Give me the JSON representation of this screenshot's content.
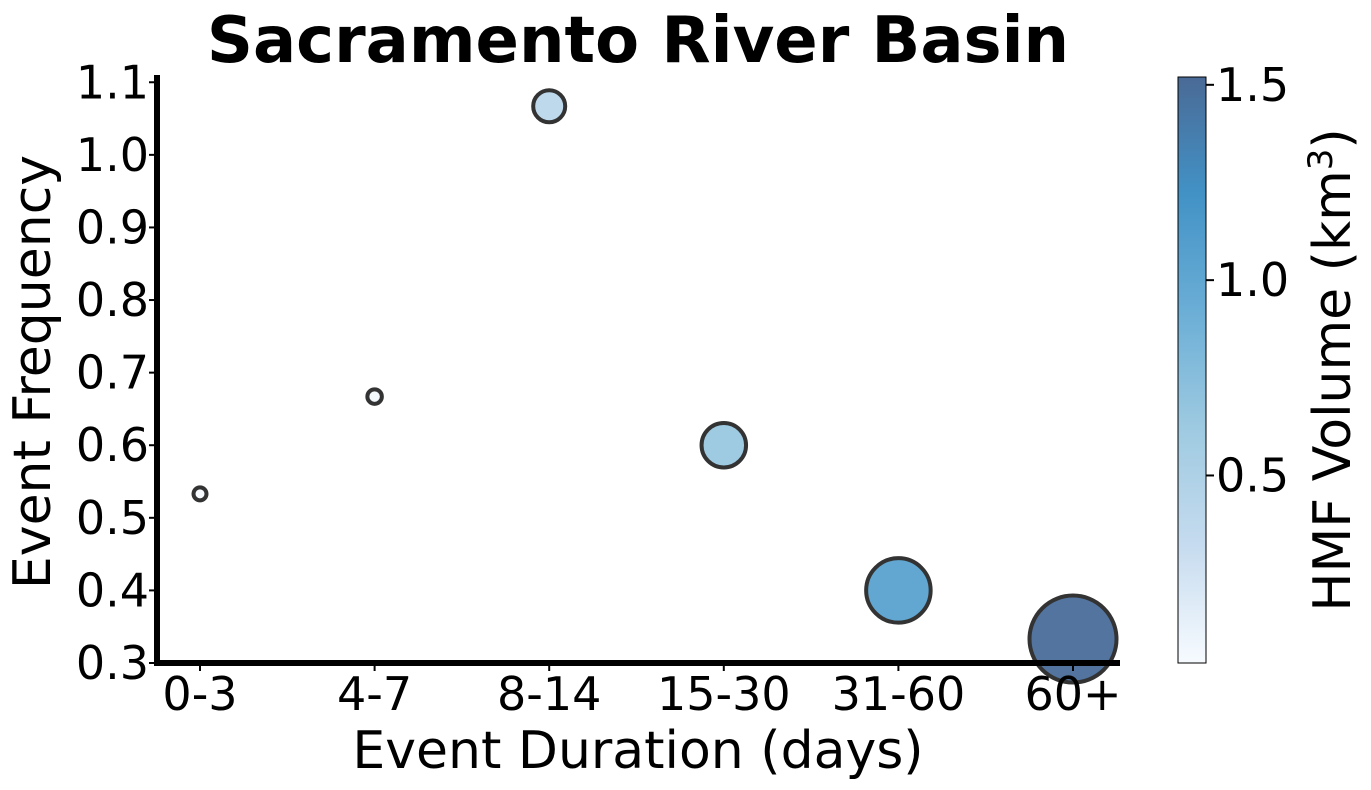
{
  "chart_data": {
    "type": "scatter",
    "title": "Sacramento River Basin",
    "xlabel": "Event Duration (days)",
    "ylabel": "Event Frequency",
    "categories": [
      "0-3",
      "4-7",
      "8-14",
      "15-30",
      "31-60",
      "60+"
    ],
    "y": [
      0.533,
      0.667,
      1.067,
      0.6,
      0.4,
      0.333
    ],
    "hmf_volume_km3": [
      0.02,
      0.05,
      0.4,
      0.65,
      1.05,
      1.5
    ],
    "ylim": [
      0.3,
      1.11
    ],
    "yticks": [
      "0.3",
      "0.4",
      "0.5",
      "0.6",
      "0.7",
      "0.8",
      "0.9",
      "1.0",
      "1.1"
    ],
    "colorbar": {
      "label": "HMF Volume (km",
      "label_superscript": "3",
      "label_suffix": ")",
      "range": [
        0.02,
        1.52
      ],
      "ticks": [
        "0.5",
        "1.0",
        "1.5"
      ],
      "colors": [
        "#f7fbff",
        "#c6dbef",
        "#9ecae1",
        "#6baed6",
        "#4292c6",
        "#4a6a96"
      ]
    },
    "grid": false,
    "marker_edge_color": "#333333"
  }
}
